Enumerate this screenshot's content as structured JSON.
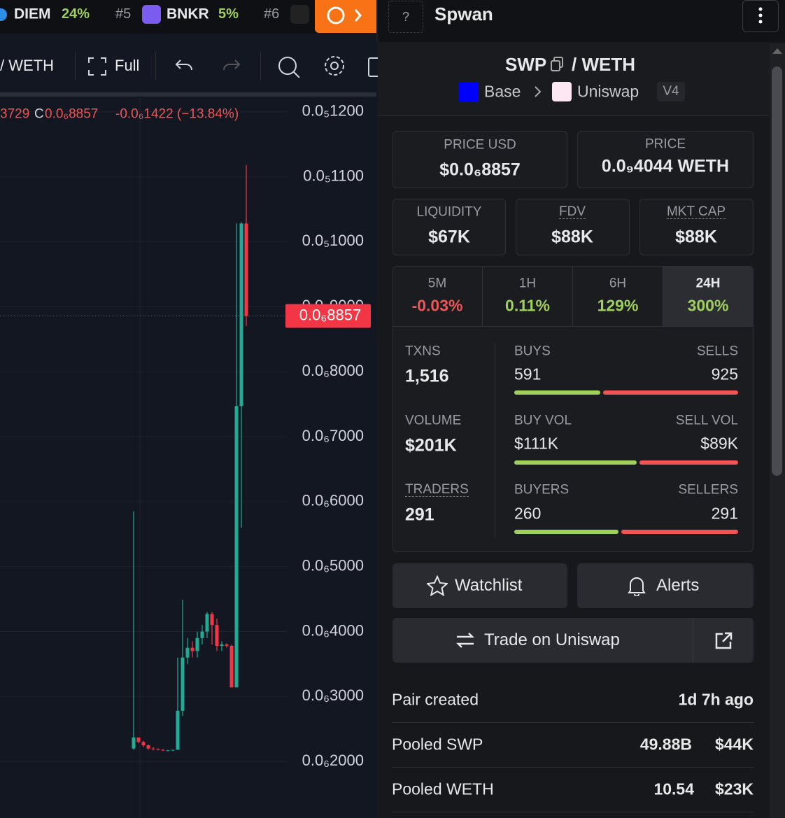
{
  "top_bar": {
    "items": [
      {
        "name": "DIEM",
        "change": "24%"
      },
      {
        "rank": "#5",
        "name": "BNKR",
        "change": "5%"
      },
      {
        "rank": "#6"
      }
    ]
  },
  "header": {
    "title": "Spwan"
  },
  "toolbar": {
    "pair": "/ WETH",
    "full": "Full"
  },
  "chart_data": {
    "type": "candlestick",
    "legend": {
      "cut_value": "3729",
      "close_label": "C",
      "close": "0.0₆8857",
      "change": "-0.0₆1422 (−13.84%)"
    },
    "ylim": [
      1.13e-07,
      1.232e-06
    ],
    "yticks": [
      {
        "value": 1.2e-06,
        "label": "0.0₅1200"
      },
      {
        "value": 1.1e-06,
        "label": "0.0₅1100"
      },
      {
        "value": 1e-06,
        "label": "0.0₅1000"
      },
      {
        "value": 9e-07,
        "label": "0.0₆9000"
      },
      {
        "value": 8e-07,
        "label": "0.0₆8000"
      },
      {
        "value": 7e-07,
        "label": "0.0₆7000"
      },
      {
        "value": 6e-07,
        "label": "0.0₆6000"
      },
      {
        "value": 5e-07,
        "label": "0.0₆5000"
      },
      {
        "value": 4e-07,
        "label": "0.0₆4000"
      },
      {
        "value": 3e-07,
        "label": "0.0₆3000"
      },
      {
        "value": 2e-07,
        "label": "0.0₆2000"
      }
    ],
    "grid": true,
    "last_price": {
      "value": 8.857e-07,
      "label": "0.0₆8857"
    },
    "up_color": "#22ab94",
    "down_color": "#f23645",
    "open": [
      2.2e-07,
      2.37e-07,
      2.3e-07,
      2.25e-07,
      2.2e-07,
      2.19e-07,
      2.18e-07,
      2.17e-07,
      2.17e-07,
      2.18e-07,
      2.78e-07,
      3.6e-07,
      3.75e-07,
      3.7e-07,
      3.9e-07,
      4e-07,
      4.27e-07,
      4.1e-07,
      3.78e-07,
      3.8e-07,
      3.78e-07,
      3.14e-07,
      7.47e-07,
      1.028e-06
    ],
    "high": [
      5.85e-07,
      2.37e-07,
      2.32e-07,
      2.26e-07,
      2.22e-07,
      2.2e-07,
      2.19e-07,
      2.18e-07,
      2.18e-07,
      3.6e-07,
      4.49e-07,
      3.9e-07,
      3.85e-07,
      4e-07,
      4.1e-07,
      4.3e-07,
      4.3e-07,
      4.2e-07,
      3.85e-07,
      3.82e-07,
      3.8e-07,
      1.028e-06,
      1.03e-06,
      1.118e-06
    ],
    "low": [
      2.18e-07,
      2.28e-07,
      2.22e-07,
      2.18e-07,
      2.17e-07,
      2.17e-07,
      2.16e-07,
      2.16e-07,
      2.16e-07,
      2.18e-07,
      2.7e-07,
      3.5e-07,
      3.6e-07,
      3.6e-07,
      3.8e-07,
      3.9e-07,
      3.8e-07,
      3.7e-07,
      3.7e-07,
      3.75e-07,
      3.14e-07,
      3.14e-07,
      5.6e-07,
      8.7e-07
    ],
    "close": [
      2.37e-07,
      2.3e-07,
      2.25e-07,
      2.2e-07,
      2.19e-07,
      2.18e-07,
      2.17e-07,
      2.17e-07,
      2.18e-07,
      2.78e-07,
      3.6e-07,
      3.75e-07,
      3.7e-07,
      3.9e-07,
      4e-07,
      4.27e-07,
      4.1e-07,
      3.78e-07,
      3.8e-07,
      3.78e-07,
      3.14e-07,
      7.47e-07,
      1.028e-06,
      8.857e-07
    ]
  },
  "pair": {
    "base": "SWP",
    "quote": "/ WETH",
    "chain": "Base",
    "dex": "Uniswap",
    "version": "V4"
  },
  "prices": [
    {
      "label": "PRICE USD",
      "value": "$0.0₆8857"
    },
    {
      "label": "PRICE",
      "value": "0.0₉4044 WETH"
    }
  ],
  "stats": [
    {
      "label": "LIQUIDITY",
      "value": "$67K"
    },
    {
      "label": "FDV",
      "value": "$88K"
    },
    {
      "label": "MKT CAP",
      "value": "$88K"
    }
  ],
  "timeframes": [
    {
      "label": "5M",
      "value": "-0.03%"
    },
    {
      "label": "1H",
      "value": "0.11%"
    },
    {
      "label": "6H",
      "value": "129%"
    },
    {
      "label": "24H",
      "value": "300%"
    }
  ],
  "txns": {
    "label": "TXNS",
    "value": "1,516",
    "buys_label": "BUYS",
    "buys": 591,
    "sells_label": "SELLS",
    "sells": 925
  },
  "volume": {
    "label": "VOLUME",
    "value": "$201K",
    "buy_label": "BUY VOL",
    "buy": {
      "value": 111000,
      "label": "$111K"
    },
    "sell_label": "SELL VOL",
    "sell": {
      "value": 89000,
      "label": "$89K"
    }
  },
  "traders": {
    "label": "TRADERS",
    "value": 291,
    "buyers_label": "BUYERS",
    "buyers": 260,
    "sellers_label": "SELLERS",
    "sellers": 291
  },
  "buttons": {
    "watchlist": "Watchlist",
    "alerts": "Alerts",
    "trade": "Trade on Uniswap"
  },
  "info": [
    {
      "label": "Pair created",
      "value": "1d 7h ago"
    },
    {
      "label": "Pooled SWP",
      "amount": "49.88B",
      "value": "$44K"
    },
    {
      "label": "Pooled WETH",
      "amount": "10.54",
      "value": "$23K"
    }
  ]
}
